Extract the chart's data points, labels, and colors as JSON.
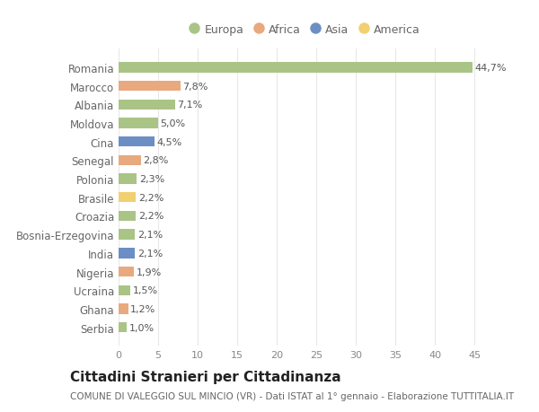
{
  "countries": [
    "Romania",
    "Marocco",
    "Albania",
    "Moldova",
    "Cina",
    "Senegal",
    "Polonia",
    "Brasile",
    "Croazia",
    "Bosnia-Erzegovina",
    "India",
    "Nigeria",
    "Ucraina",
    "Ghana",
    "Serbia"
  ],
  "values": [
    44.7,
    7.8,
    7.1,
    5.0,
    4.5,
    2.8,
    2.3,
    2.2,
    2.2,
    2.1,
    2.1,
    1.9,
    1.5,
    1.2,
    1.0
  ],
  "labels": [
    "44,7%",
    "7,8%",
    "7,1%",
    "5,0%",
    "4,5%",
    "2,8%",
    "2,3%",
    "2,2%",
    "2,2%",
    "2,1%",
    "2,1%",
    "1,9%",
    "1,5%",
    "1,2%",
    "1,0%"
  ],
  "continents": [
    "Europa",
    "Africa",
    "Europa",
    "Europa",
    "Asia",
    "Africa",
    "Europa",
    "America",
    "Europa",
    "Europa",
    "Asia",
    "Africa",
    "Europa",
    "Africa",
    "Europa"
  ],
  "continent_colors": {
    "Europa": "#aac486",
    "Africa": "#e8a97e",
    "Asia": "#6b8fc4",
    "America": "#f0d070"
  },
  "legend_order": [
    "Europa",
    "Africa",
    "Asia",
    "America"
  ],
  "xlim": [
    0,
    47
  ],
  "xticks": [
    0,
    5,
    10,
    15,
    20,
    25,
    30,
    35,
    40,
    45
  ],
  "title": "Cittadini Stranieri per Cittadinanza",
  "subtitle": "COMUNE DI VALEGGIO SUL MINCIO (VR) - Dati ISTAT al 1° gennaio - Elaborazione TUTTITALIA.IT",
  "bg_color": "#ffffff",
  "plot_bg_color": "#ffffff",
  "grid_color": "#e8e8e8",
  "label_color": "#555555",
  "tick_color": "#888888",
  "ytick_color": "#666666",
  "label_fontsize": 8.0,
  "tick_fontsize": 8.0,
  "ytick_fontsize": 8.5,
  "title_fontsize": 11,
  "subtitle_fontsize": 7.5,
  "legend_fontsize": 9,
  "bar_height": 0.55
}
